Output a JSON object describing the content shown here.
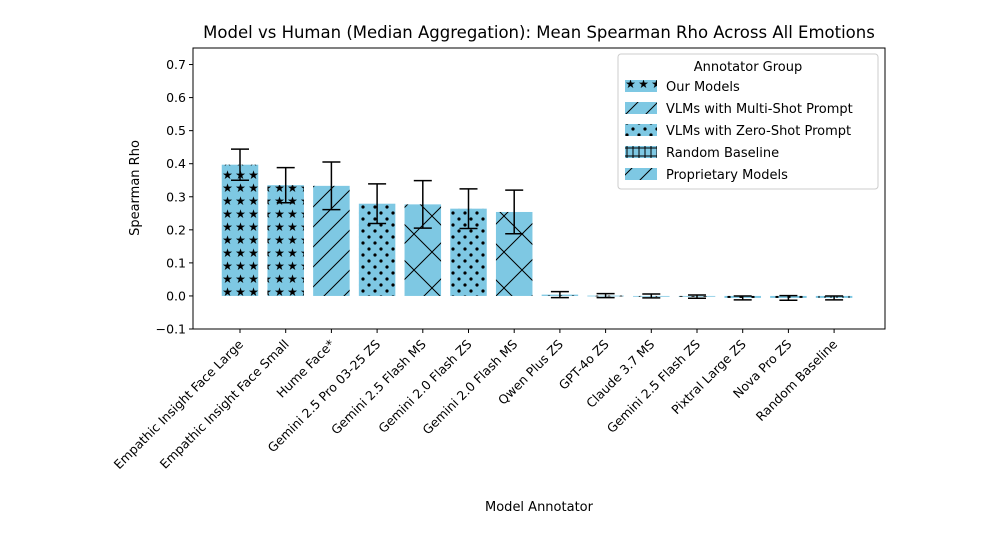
{
  "chart_data": {
    "type": "bar",
    "title": "Model vs Human (Median Aggregation): Mean Spearman Rho Across All Emotions",
    "xlabel": "Model Annotator",
    "ylabel": "Spearman Rho",
    "ylim": [
      -0.1,
      0.75
    ],
    "yticks": [
      -0.1,
      0.0,
      0.1,
      0.2,
      0.3,
      0.4,
      0.5,
      0.6,
      0.7
    ],
    "ytick_labels": [
      "−0.1",
      "0.0",
      "0.1",
      "0.2",
      "0.3",
      "0.4",
      "0.5",
      "0.6",
      "0.7"
    ],
    "bar_color": "#7ec8e3",
    "categories": [
      "Empathic Insight Face Large",
      "Empathic Insight Face Small",
      "Hume Face*",
      "Gemini 2.5 Pro 03-25 ZS",
      "Gemini 2.5 Flash MS",
      "Gemini 2.0 Flash ZS",
      "Gemini 2.0 Flash MS",
      "Qwen Plus ZS",
      "GPT-4o ZS",
      "Claude 3.7 MS",
      "Gemini 2.5 Flash ZS",
      "Pixtral Large ZS",
      "Nova Pro ZS",
      "Random Baseline"
    ],
    "values": [
      0.397,
      0.335,
      0.333,
      0.279,
      0.277,
      0.264,
      0.254,
      0.004,
      0.001,
      0.0,
      -0.002,
      -0.006,
      -0.006,
      -0.006
    ],
    "errors": [
      0.047,
      0.053,
      0.072,
      0.06,
      0.072,
      0.06,
      0.066,
      0.009,
      0.006,
      0.006,
      0.005,
      0.006,
      0.007,
      0.006
    ],
    "patterns": [
      "stars",
      "stars",
      "diag",
      "dots",
      "cross",
      "dots",
      "cross",
      "dots",
      "dots",
      "cross",
      "dots",
      "dots",
      "dots",
      "grid"
    ],
    "legend": {
      "title": "Annotator Group",
      "position": "upper-right",
      "entries": [
        {
          "label": "Our Models",
          "pattern": "stars"
        },
        {
          "label": "VLMs with Multi-Shot Prompt",
          "pattern": "diag"
        },
        {
          "label": "VLMs with Zero-Shot Prompt",
          "pattern": "dots"
        },
        {
          "label": "Random Baseline",
          "pattern": "grid"
        },
        {
          "label": "Proprietary Models",
          "pattern": "diag"
        }
      ]
    }
  }
}
